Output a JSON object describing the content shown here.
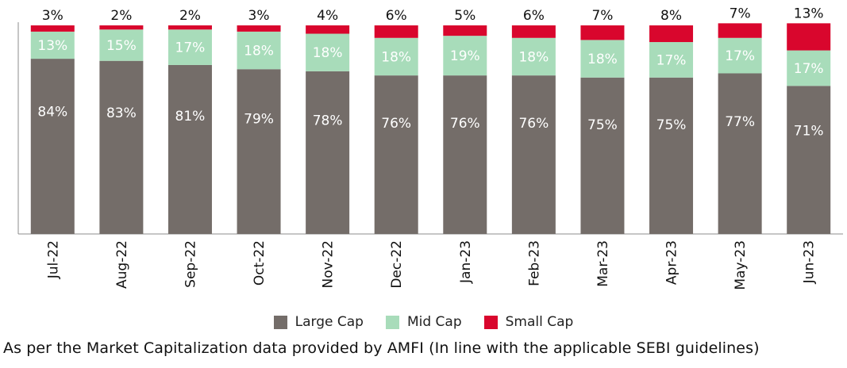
{
  "chart_data": {
    "type": "bar",
    "stacked": true,
    "percent_stacked": true,
    "categories": [
      "Jul-22",
      "Aug-22",
      "Sep-22",
      "Oct-22",
      "Nov-22",
      "Dec-22",
      "Jan-23",
      "Feb-23",
      "Mar-23",
      "Apr-23",
      "May-23",
      "Jun-23"
    ],
    "series": [
      {
        "name": "Large Cap",
        "color": "#746d69",
        "label_color": "#ffffff",
        "values": [
          84,
          83,
          81,
          79,
          78,
          76,
          76,
          76,
          75,
          75,
          77,
          71
        ],
        "labels": [
          "84%",
          "83%",
          "81%",
          "79%",
          "78%",
          "76%",
          "76%",
          "76%",
          "75%",
          "75%",
          "77%",
          "71%"
        ]
      },
      {
        "name": "Mid Cap",
        "color": "#a8dcba",
        "label_color": "#ffffff",
        "values": [
          13,
          15,
          17,
          18,
          18,
          18,
          19,
          18,
          18,
          17,
          17,
          17
        ],
        "labels": [
          "13%",
          "15%",
          "17%",
          "18%",
          "18%",
          "18%",
          "19%",
          "18%",
          "18%",
          "17%",
          "17%",
          "17%"
        ]
      },
      {
        "name": "Small Cap",
        "color": "#d9062d",
        "label_color": "#111111",
        "values": [
          3,
          2,
          2,
          3,
          4,
          6,
          5,
          6,
          7,
          8,
          7,
          13
        ],
        "labels": [
          "3%",
          "2%",
          "2%",
          "3%",
          "4%",
          "6%",
          "5%",
          "6%",
          "7%",
          "8%",
          "7%",
          "13%"
        ]
      }
    ],
    "ylim": [
      0,
      100
    ],
    "grid": false,
    "legend": "bottom"
  },
  "footnote": "As per the Market Capitalization data provided by AMFI (In line with the applicable SEBI guidelines)"
}
